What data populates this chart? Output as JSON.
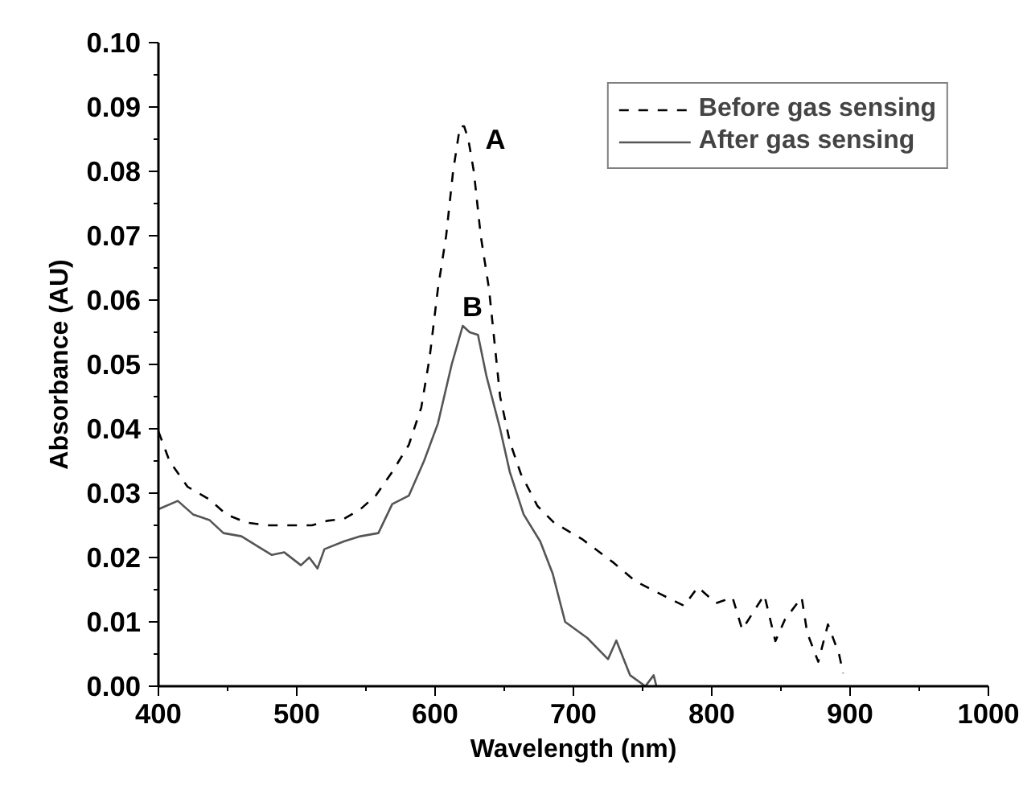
{
  "chart_data": {
    "type": "line",
    "xlabel": "Wavelength (nm)",
    "ylabel": "Absorbance (AU)",
    "xlim": [
      400,
      1000
    ],
    "xticks": [
      400,
      500,
      600,
      700,
      800,
      900,
      1000
    ],
    "ylim": [
      0,
      0.1
    ],
    "yticks": [
      {
        "value": 0,
        "label": "0.00"
      },
      {
        "value": 0.01,
        "label": "0.01"
      },
      {
        "value": 0.02,
        "label": "0.02"
      },
      {
        "value": 0.03,
        "label": "0.03"
      },
      {
        "value": 0.04,
        "label": "0.04"
      },
      {
        "value": 0.05,
        "label": "0.05"
      },
      {
        "value": 0.06,
        "label": "0.06"
      },
      {
        "value": 0.07,
        "label": "0.07"
      },
      {
        "value": 0.08,
        "label": "0.08"
      },
      {
        "value": 0.09,
        "label": "0.09"
      },
      {
        "value": 0.1,
        "label": "0.10"
      }
    ],
    "grid": false,
    "legend": "top right",
    "marker": "none",
    "series": [
      {
        "name": "Before gas sensing",
        "color": "#000000",
        "line_style": "dashed",
        "x": [
          400,
          408,
          421,
          437,
          449,
          464,
          480,
          495,
          511,
          522,
          534,
          546,
          557,
          569,
          581,
          590,
          596,
          602,
          608,
          613,
          618,
          621,
          624,
          628,
          633,
          639,
          647,
          654,
          662,
          674,
          686,
          706,
          729,
          745,
          764,
          780,
          790,
          803,
          815,
          822,
          838,
          846,
          853,
          865,
          869,
          877,
          884,
          892,
          895
        ],
        "values": [
          0.0396,
          0.035,
          0.031,
          0.029,
          0.0267,
          0.0254,
          0.025,
          0.025,
          0.025,
          0.0257,
          0.026,
          0.0275,
          0.0296,
          0.0333,
          0.0375,
          0.0433,
          0.051,
          0.0617,
          0.07,
          0.08,
          0.087,
          0.087,
          0.085,
          0.08,
          0.07,
          0.0617,
          0.045,
          0.038,
          0.033,
          0.028,
          0.0254,
          0.0229,
          0.0192,
          0.0163,
          0.0142,
          0.0125,
          0.0154,
          0.0129,
          0.0138,
          0.0088,
          0.0142,
          0.007,
          0.0104,
          0.0138,
          0.0083,
          0.0038,
          0.0096,
          0.005,
          0.002
        ]
      },
      {
        "name": "After gas sensing",
        "color": "#555555",
        "line_style": "solid",
        "x": [
          400,
          414,
          425,
          437,
          447,
          460,
          472,
          482,
          491,
          503,
          509,
          515,
          520,
          534,
          546,
          559,
          569,
          581,
          592,
          602,
          612,
          620,
          625,
          631,
          637,
          647,
          654,
          664,
          676,
          685,
          694,
          710,
          725,
          731,
          741,
          752,
          758,
          760
        ],
        "values": [
          0.0275,
          0.0288,
          0.0267,
          0.0258,
          0.0238,
          0.0233,
          0.0217,
          0.0204,
          0.0208,
          0.0188,
          0.02,
          0.0183,
          0.0213,
          0.0225,
          0.0233,
          0.0238,
          0.0283,
          0.0296,
          0.035,
          0.0408,
          0.05,
          0.056,
          0.055,
          0.0546,
          0.0483,
          0.04,
          0.0333,
          0.0267,
          0.0225,
          0.0175,
          0.01,
          0.0075,
          0.0042,
          0.0071,
          0.0017,
          0,
          0.0017,
          0
        ]
      }
    ],
    "annotations": [
      "A",
      "B"
    ]
  }
}
